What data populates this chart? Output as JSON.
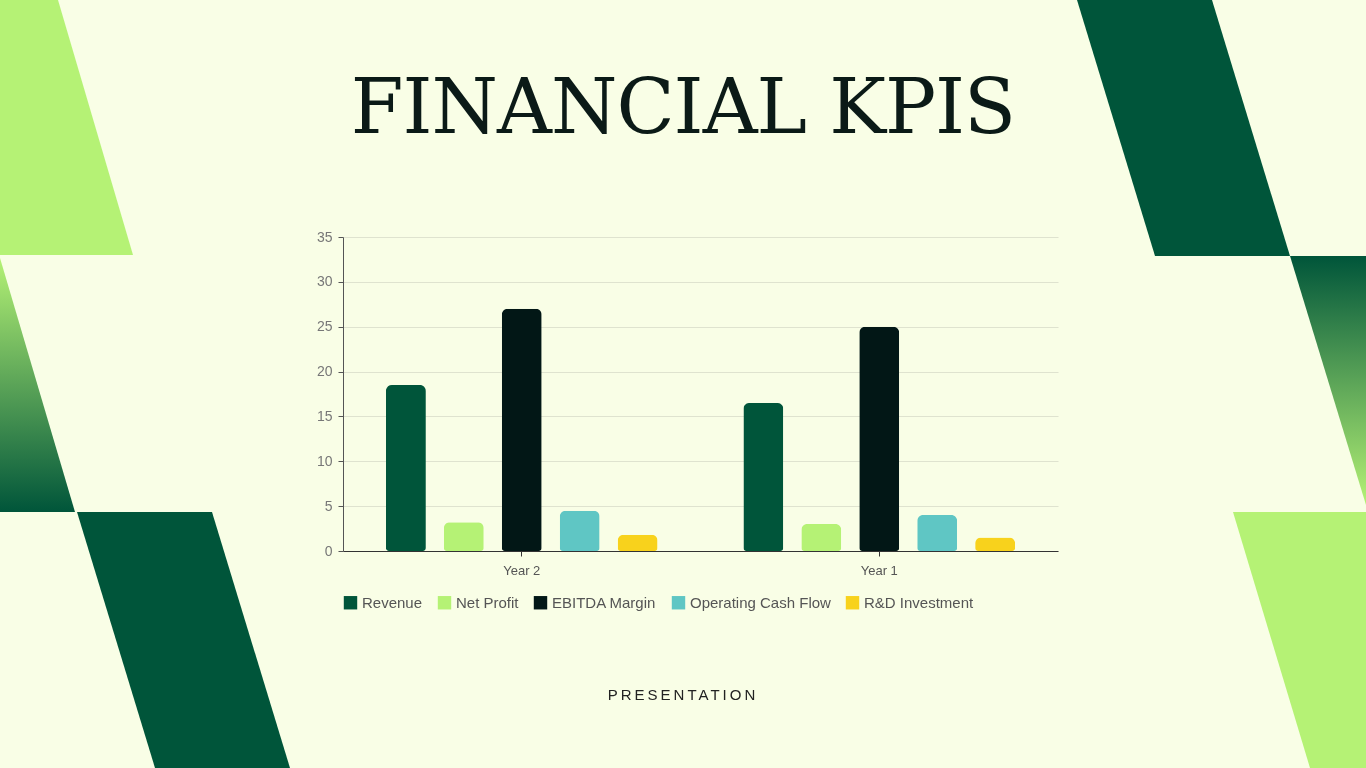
{
  "chart_data": {
    "type": "bar",
    "title": "FINANCIAL KPIS",
    "annotations": [
      "PRESENTATION"
    ],
    "categories": [
      "Year 2",
      "Year 1"
    ],
    "series": [
      {
        "name": "Revenue",
        "color": "#00553a",
        "values": [
          18.5,
          16.5
        ]
      },
      {
        "name": "Net Profit",
        "color": "#b5f275",
        "values": [
          3.2,
          3.0
        ]
      },
      {
        "name": "EBITDA Margin",
        "color": "#021716",
        "values": [
          27,
          25
        ]
      },
      {
        "name": "Operating Cash Flow",
        "color": "#5fc6c4",
        "values": [
          4.5,
          4.0
        ]
      },
      {
        "name": "R&D Investment",
        "color": "#f8d21c",
        "values": [
          1.8,
          1.5
        ]
      }
    ],
    "ylim": [
      0,
      35
    ],
    "yticks": [
      0,
      5,
      10,
      15,
      20,
      25,
      30,
      35
    ],
    "grid": "y",
    "legend": "bottom"
  }
}
